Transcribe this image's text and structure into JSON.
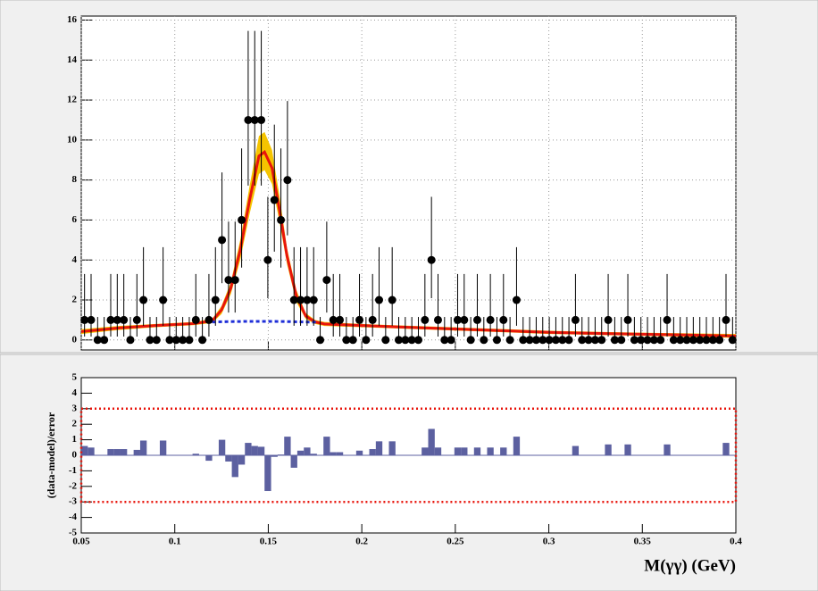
{
  "chart_data": [
    {
      "type": "scatter",
      "x": [
        0.05175,
        0.05525,
        0.05875,
        0.06225,
        0.06575,
        0.06925,
        0.07275,
        0.07625,
        0.07975,
        0.08325,
        0.08675,
        0.09025,
        0.09375,
        0.09725,
        0.10075,
        0.10425,
        0.10775,
        0.11125,
        0.11475,
        0.11825,
        0.12175,
        0.12525,
        0.12875,
        0.13225,
        0.13575,
        0.13925,
        0.14275,
        0.14625,
        0.14975,
        0.15325,
        0.15675,
        0.16025,
        0.16375,
        0.16725,
        0.17075,
        0.17425,
        0.17775,
        0.18125,
        0.18475,
        0.18825,
        0.19175,
        0.19525,
        0.19875,
        0.20225,
        0.20575,
        0.20925,
        0.21275,
        0.21625,
        0.21975,
        0.22325,
        0.22675,
        0.23025,
        0.23375,
        0.23725,
        0.24075,
        0.24425,
        0.24775,
        0.25125,
        0.25475,
        0.25825,
        0.26175,
        0.26525,
        0.26875,
        0.27225,
        0.27575,
        0.27925,
        0.28275,
        0.28625,
        0.28975,
        0.29325,
        0.29675,
        0.30025,
        0.30375,
        0.30725,
        0.31075,
        0.31425,
        0.31775,
        0.32125,
        0.32475,
        0.32825,
        0.33175,
        0.33525,
        0.33875,
        0.34225,
        0.34575,
        0.34925,
        0.35275,
        0.35625,
        0.35975,
        0.36325,
        0.36675,
        0.37025,
        0.37375,
        0.37725,
        0.38075,
        0.38425,
        0.38775,
        0.39125,
        0.39475,
        0.39825
      ],
      "values": [
        1,
        1,
        0,
        0,
        1,
        1,
        1,
        0,
        1,
        2,
        0,
        0,
        2,
        0,
        0,
        0,
        0,
        1,
        0,
        1,
        2,
        5,
        3,
        3,
        6,
        11,
        11,
        11,
        4,
        7,
        6,
        8,
        2,
        2,
        2,
        2,
        0,
        3,
        1,
        1,
        0,
        0,
        1,
        0,
        1,
        2,
        0,
        2,
        0,
        0,
        0,
        0,
        1,
        4,
        1,
        0,
        0,
        1,
        1,
        0,
        1,
        0,
        1,
        0,
        1,
        0,
        2,
        0,
        0,
        0,
        0,
        0,
        0,
        0,
        0,
        1,
        0,
        0,
        0,
        0,
        1,
        0,
        0,
        1,
        0,
        0,
        0,
        0,
        0,
        1,
        0,
        0,
        0,
        0,
        0,
        0,
        0,
        0,
        1,
        0
      ],
      "errors_low": [
        0.83,
        0.83,
        0,
        0,
        0.83,
        0.83,
        0.83,
        0,
        0.83,
        1.29,
        0,
        0,
        1.29,
        0,
        0,
        0,
        0,
        0.83,
        0,
        0.83,
        1.29,
        2.16,
        1.63,
        1.63,
        2.38,
        3.28,
        3.28,
        3.28,
        1.91,
        2.58,
        2.38,
        2.77,
        1.29,
        1.29,
        1.29,
        1.29,
        0,
        1.63,
        0.83,
        0.83,
        0,
        0,
        0.83,
        0,
        0.83,
        1.29,
        0,
        1.29,
        0,
        0,
        0,
        0,
        0.83,
        1.91,
        0.83,
        0,
        0,
        0.83,
        0.83,
        0,
        0.83,
        0,
        0.83,
        0,
        0.83,
        0,
        1.29,
        0,
        0,
        0,
        0,
        0,
        0,
        0,
        0,
        0.83,
        0,
        0,
        0,
        0,
        0.83,
        0,
        0,
        0.83,
        0,
        0,
        0,
        0,
        0,
        0.83,
        0,
        0,
        0,
        0,
        0,
        0,
        0,
        0,
        0.83,
        0
      ],
      "errors_high": [
        2.3,
        2.3,
        1.15,
        1.15,
        2.3,
        2.3,
        2.3,
        1.15,
        2.3,
        2.64,
        1.15,
        1.15,
        2.64,
        1.15,
        1.15,
        1.15,
        1.15,
        2.3,
        1.15,
        2.3,
        2.64,
        3.38,
        2.92,
        2.92,
        3.58,
        4.46,
        4.46,
        4.46,
        3.16,
        3.77,
        3.58,
        3.95,
        2.64,
        2.64,
        2.64,
        2.64,
        1.15,
        2.92,
        2.3,
        2.3,
        1.15,
        1.15,
        2.3,
        1.15,
        2.3,
        2.64,
        1.15,
        2.64,
        1.15,
        1.15,
        1.15,
        1.15,
        2.3,
        3.16,
        2.3,
        1.15,
        1.15,
        2.3,
        2.3,
        1.15,
        2.3,
        1.15,
        2.3,
        1.15,
        2.3,
        1.15,
        2.64,
        1.15,
        1.15,
        1.15,
        1.15,
        1.15,
        1.15,
        1.15,
        1.15,
        2.3,
        1.15,
        1.15,
        1.15,
        1.15,
        2.3,
        1.15,
        1.15,
        2.3,
        1.15,
        1.15,
        1.15,
        1.15,
        1.15,
        2.3,
        1.15,
        1.15,
        1.15,
        1.15,
        1.15,
        1.15,
        1.15,
        1.15,
        2.3,
        1.15
      ],
      "color": "#000000",
      "model": {
        "color": "#e8150c",
        "x": [
          0.05,
          0.07,
          0.09,
          0.11,
          0.12,
          0.125,
          0.13,
          0.135,
          0.14,
          0.145,
          0.148,
          0.152,
          0.156,
          0.16,
          0.165,
          0.17,
          0.175,
          0.18,
          0.2,
          0.22,
          0.25,
          0.28,
          0.3,
          0.33,
          0.36,
          0.4
        ],
        "values": [
          0.42,
          0.6,
          0.72,
          0.82,
          0.95,
          1.5,
          2.6,
          4.5,
          7.0,
          9.2,
          9.4,
          8.6,
          6.5,
          4.2,
          2.2,
          1.2,
          0.9,
          0.8,
          0.72,
          0.65,
          0.55,
          0.45,
          0.38,
          0.32,
          0.27,
          0.2
        ],
        "band_low": [
          0.3,
          0.5,
          0.64,
          0.74,
          0.85,
          1.3,
          2.3,
          4.0,
          6.3,
          8.3,
          8.5,
          7.8,
          5.9,
          3.8,
          1.9,
          1.05,
          0.8,
          0.7,
          0.64,
          0.57,
          0.47,
          0.37,
          0.3,
          0.24,
          0.19,
          0.1
        ],
        "band_high": [
          0.54,
          0.7,
          0.8,
          0.9,
          1.05,
          1.7,
          2.9,
          5.0,
          7.7,
          10.2,
          10.4,
          9.5,
          7.2,
          4.6,
          2.5,
          1.35,
          1.0,
          0.9,
          0.8,
          0.73,
          0.63,
          0.53,
          0.46,
          0.4,
          0.35,
          0.3
        ],
        "band_color": "#f5c400"
      },
      "background": {
        "color": "#1f2fd8",
        "x": [
          0.12,
          0.13,
          0.14,
          0.15,
          0.16,
          0.17,
          0.176
        ],
        "values": [
          0.9,
          0.92,
          0.93,
          0.93,
          0.92,
          0.9,
          0.89
        ]
      },
      "xlim": [
        0.05,
        0.4
      ],
      "xticks": [
        0.05,
        0.1,
        0.15,
        0.2,
        0.25,
        0.3,
        0.35,
        0.4
      ],
      "ylim": [
        -0.5,
        16.2
      ],
      "yticks": [
        0,
        2,
        4,
        6,
        8,
        10,
        12,
        14,
        16
      ],
      "grid": true
    },
    {
      "type": "bar",
      "x": [
        0.05175,
        0.05525,
        0.05875,
        0.06225,
        0.06575,
        0.06925,
        0.07275,
        0.07625,
        0.07975,
        0.08325,
        0.08675,
        0.09025,
        0.09375,
        0.09725,
        0.10075,
        0.10425,
        0.10775,
        0.11125,
        0.11475,
        0.11825,
        0.12175,
        0.12525,
        0.12875,
        0.13225,
        0.13575,
        0.13925,
        0.14275,
        0.14625,
        0.14975,
        0.15325,
        0.15675,
        0.16025,
        0.16375,
        0.16725,
        0.17075,
        0.17425,
        0.17775,
        0.18125,
        0.18475,
        0.18825,
        0.19175,
        0.19525,
        0.19875,
        0.20225,
        0.20575,
        0.20925,
        0.21275,
        0.21625,
        0.21975,
        0.22325,
        0.22675,
        0.23025,
        0.23375,
        0.23725,
        0.24075,
        0.24425,
        0.24775,
        0.25125,
        0.25475,
        0.25825,
        0.26175,
        0.26525,
        0.26875,
        0.27225,
        0.27575,
        0.27925,
        0.28275,
        0.28625,
        0.28975,
        0.29325,
        0.29675,
        0.30025,
        0.30375,
        0.30725,
        0.31075,
        0.31425,
        0.31775,
        0.32125,
        0.32475,
        0.32825,
        0.33175,
        0.33525,
        0.33875,
        0.34225,
        0.34575,
        0.34925,
        0.35275,
        0.35625,
        0.35975,
        0.36325,
        0.36675,
        0.37025,
        0.37375,
        0.37725,
        0.38075,
        0.38425,
        0.38775,
        0.39125,
        0.39475,
        0.39825
      ],
      "values": [
        0.6,
        0.5,
        0,
        0,
        0.4,
        0.4,
        0.4,
        0,
        0.35,
        0.95,
        0,
        0,
        0.95,
        0,
        0,
        0,
        0,
        0.1,
        0,
        -0.35,
        0,
        1.0,
        -0.4,
        -1.4,
        -0.6,
        0.8,
        0.6,
        0.55,
        -2.3,
        -0.1,
        0.05,
        1.2,
        -0.8,
        0.3,
        0.5,
        0.1,
        0,
        1.2,
        0.2,
        0.2,
        0,
        0,
        0.3,
        0,
        0.4,
        0.9,
        0,
        0.9,
        0,
        0,
        0,
        0,
        0.5,
        1.7,
        0.5,
        0,
        0,
        0.5,
        0.5,
        0,
        0.5,
        0,
        0.5,
        0,
        0.5,
        0,
        1.2,
        0,
        0,
        0,
        0,
        0,
        0,
        0,
        0,
        0.6,
        0,
        0,
        0,
        0,
        0.7,
        0,
        0,
        0.7,
        0,
        0,
        0,
        0,
        0,
        0.7,
        0,
        0,
        0,
        0,
        0,
        0,
        0,
        0,
        0.8,
        0
      ],
      "color": "#5c60a0",
      "band": [
        -3,
        3
      ],
      "band_color": "#e8150c",
      "y_label": "(data-model)/error",
      "x_label": "M(γγ) (GeV)",
      "xlim": [
        0.05,
        0.4
      ],
      "xticks": [
        0.05,
        0.1,
        0.15,
        0.2,
        0.25,
        0.3,
        0.35,
        0.4
      ],
      "ylim": [
        -5,
        5
      ],
      "yticks": [
        -5,
        -4,
        -3,
        -2,
        -1,
        0,
        1,
        2,
        3,
        4,
        5
      ]
    }
  ]
}
